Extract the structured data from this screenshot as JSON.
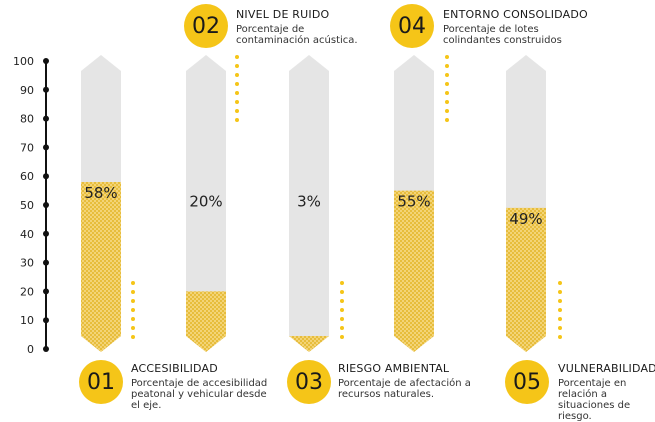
{
  "colors": {
    "accent": "#f5c518",
    "fill": "#f3d477",
    "column_bg": "#e5e5e5",
    "axis": "#111111"
  },
  "chart_data": {
    "type": "bar",
    "categories": [
      "01",
      "02",
      "03",
      "04",
      "05"
    ],
    "values": [
      58,
      20,
      3,
      55,
      49
    ],
    "value_labels": [
      "58%",
      "20%",
      "3%",
      "55%",
      "49%"
    ],
    "yticks": [
      0,
      10,
      20,
      30,
      40,
      50,
      60,
      70,
      80,
      90,
      100
    ],
    "ylim": [
      0,
      100
    ],
    "title": "",
    "xlabel": "",
    "ylabel": "",
    "grid": false
  },
  "indicators": [
    {
      "number": "01",
      "title": "ACCESIBILIDAD",
      "desc": [
        "Porcentaje de accesibilidad",
        "peatonal y vehicular desde",
        "el eje."
      ]
    },
    {
      "number": "02",
      "title": "NIVEL DE RUIDO",
      "desc": [
        "Porcentaje de",
        "contaminación acústica."
      ]
    },
    {
      "number": "03",
      "title": "RIESGO AMBIENTAL",
      "desc": [
        "Porcentaje de afectación a",
        "recursos naturales."
      ]
    },
    {
      "number": "04",
      "title": "ENTORNO CONSOLIDADO",
      "desc": [
        "Porcentaje de lotes",
        "colindantes construidos"
      ]
    },
    {
      "number": "05",
      "title": "VULNERABILIDAD",
      "desc": [
        "Porcentaje en",
        "relación a",
        "situaciones de",
        "riesgo."
      ]
    }
  ]
}
